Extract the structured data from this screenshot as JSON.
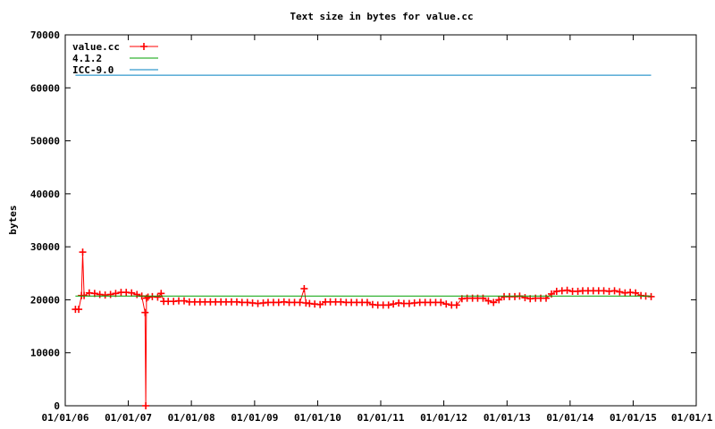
{
  "chart_data": {
    "type": "line",
    "title": "Text size in bytes for value.cc",
    "xlabel": "",
    "ylabel": "bytes",
    "xlim": [
      "2006-01-01",
      "2016-01-01"
    ],
    "ylim": [
      0,
      70000
    ],
    "xticks": [
      "01/01/06",
      "01/01/07",
      "01/01/08",
      "01/01/09",
      "01/01/10",
      "01/01/11",
      "01/01/12",
      "01/01/13",
      "01/01/14",
      "01/01/15",
      "01/01/1"
    ],
    "xtick_dates": [
      "2006-01-01",
      "2007-01-01",
      "2008-01-01",
      "2009-01-01",
      "2010-01-01",
      "2011-01-01",
      "2012-01-01",
      "2013-01-01",
      "2014-01-01",
      "2015-01-01",
      "2016-01-01"
    ],
    "yticks": [
      0,
      10000,
      20000,
      30000,
      40000,
      50000,
      60000,
      70000
    ],
    "legend_position": "top-left",
    "series": [
      {
        "name": "value.cc",
        "color": "#ff0000",
        "style": "linespoints",
        "marker": "plus",
        "x": [
          "2006-03-01",
          "2006-03-20",
          "2006-04-05",
          "2006-04-12",
          "2006-04-20",
          "2006-05-20",
          "2006-06-20",
          "2006-07-20",
          "2006-08-20",
          "2006-09-20",
          "2006-10-20",
          "2006-11-20",
          "2006-12-20",
          "2007-01-20",
          "2007-02-20",
          "2007-03-20",
          "2007-04-08",
          "2007-04-12",
          "2007-04-16",
          "2007-04-25",
          "2007-05-20",
          "2007-06-20",
          "2007-07-10",
          "2007-07-25",
          "2007-08-20",
          "2007-09-20",
          "2007-10-20",
          "2007-11-20",
          "2007-12-20",
          "2008-01-20",
          "2008-02-20",
          "2008-03-20",
          "2008-04-20",
          "2008-05-20",
          "2008-06-20",
          "2008-07-20",
          "2008-08-20",
          "2008-09-20",
          "2008-10-20",
          "2008-11-20",
          "2008-12-20",
          "2009-01-20",
          "2009-02-20",
          "2009-03-20",
          "2009-04-20",
          "2009-05-20",
          "2009-06-20",
          "2009-07-20",
          "2009-08-20",
          "2009-09-20",
          "2009-10-15",
          "2009-10-25",
          "2009-11-15",
          "2009-12-15",
          "2010-01-15",
          "2010-02-15",
          "2010-03-15",
          "2010-04-15",
          "2010-05-15",
          "2010-06-15",
          "2010-07-15",
          "2010-08-15",
          "2010-09-15",
          "2010-10-15",
          "2010-11-15",
          "2010-12-15",
          "2011-01-15",
          "2011-02-15",
          "2011-03-15",
          "2011-04-15",
          "2011-05-15",
          "2011-06-15",
          "2011-07-15",
          "2011-08-15",
          "2011-09-15",
          "2011-10-15",
          "2011-11-15",
          "2011-12-15",
          "2012-01-15",
          "2012-02-15",
          "2012-03-15",
          "2012-04-15",
          "2012-05-15",
          "2012-06-15",
          "2012-07-15",
          "2012-08-15",
          "2012-09-15",
          "2012-10-15",
          "2012-11-15",
          "2012-12-15",
          "2013-01-15",
          "2013-02-15",
          "2013-03-15",
          "2013-04-15",
          "2013-05-15",
          "2013-06-15",
          "2013-07-15",
          "2013-08-15",
          "2013-09-15",
          "2013-10-15",
          "2013-11-15",
          "2013-12-15",
          "2014-01-15",
          "2014-02-15",
          "2014-03-15",
          "2014-04-15",
          "2014-05-15",
          "2014-06-15",
          "2014-07-15",
          "2014-08-15",
          "2014-09-15",
          "2014-10-15",
          "2014-11-15",
          "2014-12-15",
          "2015-01-15",
          "2015-02-15",
          "2015-03-15",
          "2015-04-15"
        ],
        "y": [
          18200,
          18200,
          20800,
          29000,
          20800,
          21300,
          21200,
          21000,
          20900,
          21000,
          21200,
          21400,
          21400,
          21300,
          21000,
          20700,
          17600,
          0,
          20300,
          20500,
          20600,
          20500,
          21200,
          19700,
          19700,
          19700,
          19800,
          19800,
          19600,
          19600,
          19600,
          19600,
          19600,
          19600,
          19600,
          19600,
          19600,
          19600,
          19500,
          19500,
          19400,
          19300,
          19400,
          19500,
          19500,
          19500,
          19600,
          19500,
          19500,
          19500,
          22100,
          19400,
          19300,
          19200,
          19100,
          19600,
          19600,
          19600,
          19600,
          19500,
          19500,
          19500,
          19500,
          19500,
          19100,
          19000,
          19000,
          19000,
          19200,
          19400,
          19300,
          19300,
          19400,
          19500,
          19500,
          19500,
          19500,
          19500,
          19200,
          19000,
          19000,
          20200,
          20300,
          20300,
          20300,
          20300,
          19800,
          19500,
          20000,
          20600,
          20600,
          20600,
          20700,
          20400,
          20200,
          20300,
          20300,
          20300,
          21100,
          21600,
          21700,
          21800,
          21600,
          21600,
          21700,
          21700,
          21700,
          21700,
          21700,
          21600,
          21700,
          21500,
          21300,
          21400,
          21300,
          20800,
          20700,
          20600
        ]
      },
      {
        "name": "4.1.2",
        "color": "#00a000",
        "style": "line",
        "x": [
          "2006-03-01",
          "2015-04-15"
        ],
        "y": [
          20700,
          20700
        ]
      },
      {
        "name": "ICC-9.0",
        "color": "#0080c0",
        "style": "line",
        "x": [
          "2006-03-01",
          "2015-04-15"
        ],
        "y": [
          62400,
          62400
        ]
      }
    ]
  }
}
